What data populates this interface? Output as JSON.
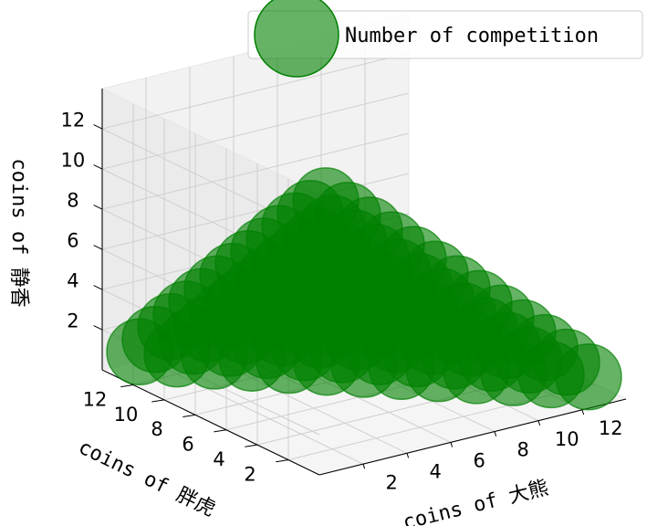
{
  "chart_data": {
    "type": "scatter",
    "projection": "3d",
    "title": "",
    "xlabel": "coins of 大熊",
    "ylabel": "coins of 胖虎",
    "zlabel": "coins of 静香",
    "x_ticks": [
      2,
      4,
      6,
      8,
      10,
      12
    ],
    "y_ticks": [
      2,
      4,
      6,
      8,
      10,
      12
    ],
    "z_ticks": [
      2,
      4,
      6,
      8,
      10,
      12
    ],
    "xlim": [
      0,
      14
    ],
    "ylim": [
      0,
      14
    ],
    "zlim": [
      0,
      14
    ],
    "grid": true,
    "legend": {
      "location": "top-right",
      "entries": [
        "Number of competition"
      ]
    },
    "series": [
      {
        "name": "Number of competition",
        "color": "#008000",
        "alpha": 0.6,
        "rule": "all integer triples (x, y, z) with x, y, z >= 1 and x + y + z = 15",
        "sum": 15,
        "min": 1
      }
    ]
  }
}
